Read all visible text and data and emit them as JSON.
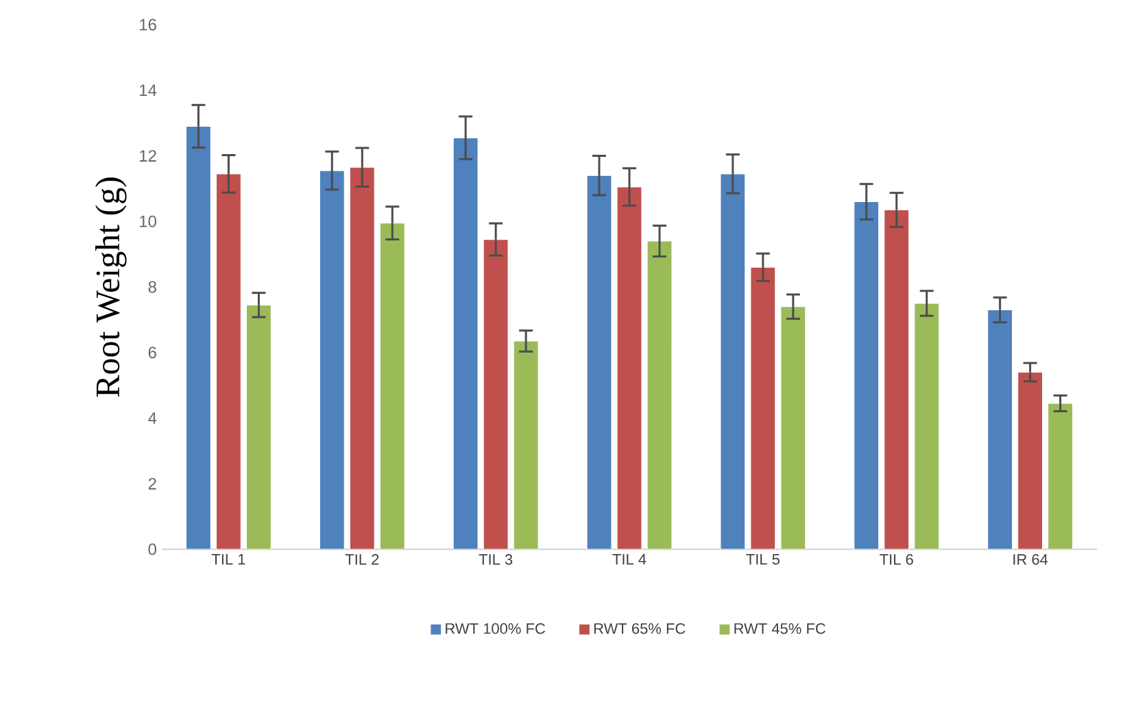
{
  "chart_data": {
    "type": "bar",
    "ylabel": "Root Weight (g)",
    "categories": [
      "TIL 1",
      "TIL 2",
      "TIL 3",
      "TIL 4",
      "TIL 5",
      "TIL 6",
      "IR 64"
    ],
    "series": [
      {
        "name": "RWT 100% FC",
        "color": "#4f81bd",
        "values": [
          12.9,
          11.55,
          12.55,
          11.4,
          11.45,
          10.6,
          7.3
        ],
        "errors": [
          0.65,
          0.58,
          0.65,
          0.6,
          0.59,
          0.54,
          0.38
        ]
      },
      {
        "name": "RWT 65% FC",
        "color": "#c0504d",
        "values": [
          11.45,
          11.65,
          9.45,
          11.05,
          8.6,
          10.35,
          5.4
        ],
        "errors": [
          0.57,
          0.59,
          0.49,
          0.57,
          0.42,
          0.52,
          0.28
        ]
      },
      {
        "name": "RWT 45% FC",
        "color": "#9bbb59",
        "values": [
          7.45,
          9.95,
          6.35,
          9.4,
          7.4,
          7.5,
          4.45
        ],
        "errors": [
          0.37,
          0.5,
          0.32,
          0.47,
          0.37,
          0.38,
          0.24
        ]
      }
    ],
    "ylim": [
      0,
      16
    ],
    "yticks": [
      0,
      2,
      4,
      6,
      8,
      10,
      12,
      14,
      16
    ],
    "grid": false,
    "legend": "bottom"
  }
}
